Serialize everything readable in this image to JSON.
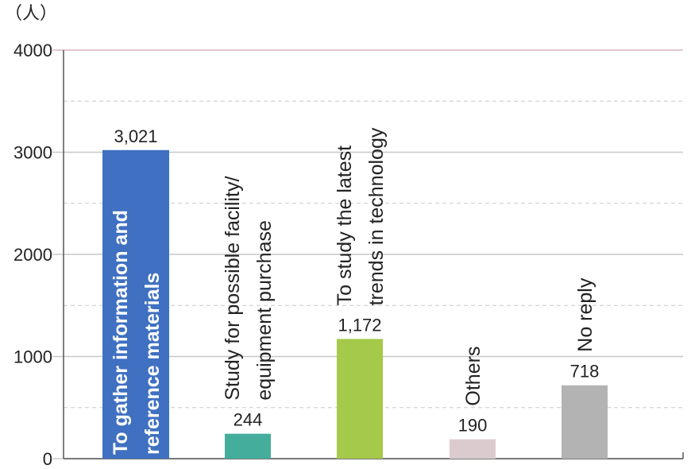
{
  "chart_data": {
    "type": "bar",
    "unit_label": "（人）",
    "categories": [
      [
        "To gather information and",
        "reference materials"
      ],
      [
        "Study for possible facility/",
        "equipment purchase"
      ],
      [
        "To study the latest",
        "trends in technology"
      ],
      [
        "Others"
      ],
      [
        "No reply"
      ]
    ],
    "values": [
      3021,
      244,
      1172,
      190,
      718
    ],
    "value_labels": [
      "3,021",
      "244",
      "1,172",
      "190",
      "718"
    ],
    "colors": [
      "#3f70c1",
      "#45ad9c",
      "#a5c94a",
      "#dccbce",
      "#b3b3b3"
    ],
    "ylim": [
      0,
      4000
    ],
    "yticks": [
      0,
      1000,
      2000,
      3000,
      4000
    ],
    "minor_yticks": [
      500,
      1500,
      2500,
      3500
    ],
    "grid": true
  }
}
